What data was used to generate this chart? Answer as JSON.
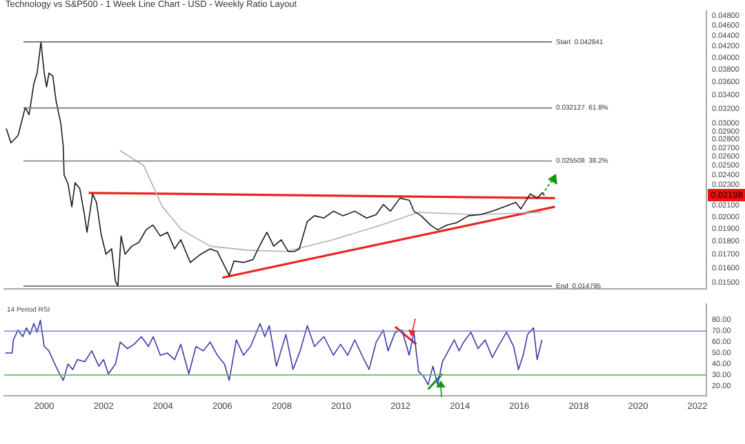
{
  "chart_data": [
    {
      "type": "line",
      "title": "Technology vs S&P500 - 1 Week Line Chart - USD - Weekly Ratio Layout",
      "log": "y",
      "grid": false,
      "legend": false,
      "marker": "none",
      "line_style": "solid",
      "tick_labels": "y",
      "xlim": [
        1998.65,
        2022.3
      ],
      "ylim": [
        0.0146,
        0.049
      ],
      "yticks": [
        {
          "value": 0.015,
          "label": "0.01500"
        },
        {
          "value": 0.016,
          "label": "0.01600"
        },
        {
          "value": 0.017,
          "label": "0.01700"
        },
        {
          "value": 0.018,
          "label": "0.01800"
        },
        {
          "value": 0.019,
          "label": "0.01900"
        },
        {
          "value": 0.02,
          "label": "0.02000"
        },
        {
          "value": 0.021,
          "label": "0.02100"
        },
        {
          "value": 0.023,
          "label": "0.02300"
        },
        {
          "value": 0.024,
          "label": "0.02400"
        },
        {
          "value": 0.025,
          "label": "0.02500"
        },
        {
          "value": 0.026,
          "label": "0.02600"
        },
        {
          "value": 0.027,
          "label": "0.02700"
        },
        {
          "value": 0.028,
          "label": "0.02800"
        },
        {
          "value": 0.029,
          "label": "0.02900"
        },
        {
          "value": 0.03,
          "label": "0.03000"
        },
        {
          "value": 0.032,
          "label": "0.03200"
        },
        {
          "value": 0.034,
          "label": "0.03400"
        },
        {
          "value": 0.036,
          "label": "0.03600"
        },
        {
          "value": 0.038,
          "label": "0.03800"
        },
        {
          "value": 0.04,
          "label": "0.04000"
        },
        {
          "value": 0.042,
          "label": "0.04200"
        },
        {
          "value": 0.044,
          "label": "0.04400"
        },
        {
          "value": 0.046,
          "label": "0.04600"
        },
        {
          "value": 0.048,
          "label": "0.04800"
        }
      ],
      "ref_lines": [
        {
          "axis": "y",
          "value": 0.042841,
          "label": "Start  0.042841",
          "color": "#555555"
        },
        {
          "axis": "y",
          "value": 0.032127,
          "label": "0.032127  61.8%",
          "color": "#777777"
        },
        {
          "axis": "y",
          "value": 0.025508,
          "label": "0.025508  38.2%",
          "color": "#777777"
        },
        {
          "axis": "y",
          "value": 0.014795,
          "label": "End  0.014795",
          "color": "#555555"
        }
      ],
      "annotations": [
        {
          "text": "0.02198",
          "y": 0.02198
        }
      ],
      "series": [
        {
          "color": "#1a1a1a",
          "x": [
            1998.72,
            1998.88,
            1999.12,
            1999.36,
            1999.49,
            1999.65,
            1999.76,
            1999.89,
            2000.0,
            2000.08,
            2000.16,
            2000.29,
            2000.4,
            2000.56,
            2000.64,
            2000.67,
            2000.8,
            2000.93,
            2001.04,
            2001.2,
            2001.36,
            2001.44,
            2001.63,
            2001.76,
            2001.92,
            2002.08,
            2002.27,
            2002.4,
            2002.48,
            2002.59,
            2002.72,
            2002.95,
            2003.19,
            2003.43,
            2003.66,
            2003.91,
            2004.15,
            2004.39,
            2004.6,
            2004.92,
            2005.27,
            2005.59,
            2005.83,
            2006.23,
            2006.39,
            2006.71,
            2007.03,
            2007.27,
            2007.5,
            2007.73,
            2007.98,
            2008.22,
            2008.43,
            2008.59,
            2008.86,
            2009.1,
            2009.42,
            2009.74,
            2010.06,
            2010.46,
            2010.86,
            2011.18,
            2011.42,
            2011.66,
            2011.98,
            2012.3,
            2012.45,
            2012.69,
            2013.01,
            2013.25,
            2013.56,
            2013.89,
            2014.29,
            2014.69,
            2015.09,
            2015.49,
            2015.88,
            2016.05,
            2016.37,
            2016.61,
            2016.76,
            2016.85
          ],
          "values": [
            0.0294,
            0.0276,
            0.0285,
            0.0322,
            0.0312,
            0.0357,
            0.0374,
            0.0428,
            0.0374,
            0.0352,
            0.0374,
            0.0369,
            0.0331,
            0.03,
            0.0272,
            0.024,
            0.0231,
            0.0209,
            0.0232,
            0.0226,
            0.0201,
            0.0187,
            0.0221,
            0.0213,
            0.0185,
            0.017,
            0.0174,
            0.0151,
            0.0148,
            0.0184,
            0.017,
            0.0176,
            0.0179,
            0.0189,
            0.0193,
            0.0184,
            0.0187,
            0.0174,
            0.0181,
            0.0164,
            0.017,
            0.0174,
            0.0172,
            0.0155,
            0.0165,
            0.0164,
            0.0166,
            0.0177,
            0.0187,
            0.0176,
            0.0181,
            0.0172,
            0.0172,
            0.0174,
            0.0196,
            0.0201,
            0.0199,
            0.0205,
            0.0201,
            0.0205,
            0.0199,
            0.0202,
            0.0211,
            0.0205,
            0.0217,
            0.0215,
            0.0205,
            0.0201,
            0.0193,
            0.0189,
            0.0193,
            0.0195,
            0.0201,
            0.0202,
            0.0205,
            0.0209,
            0.0213,
            0.0207,
            0.0221,
            0.0217,
            0.0222,
            0.02198
          ]
        },
        {
          "color": "#b0b0b0",
          "x": [
            2002.55,
            2003.35,
            2003.98,
            2004.63,
            2005.59,
            2006.85,
            2008.15,
            2009.72,
            2011.34,
            2012.6,
            2014.54,
            2016.76
          ],
          "values": [
            0.0267,
            0.025,
            0.0209,
            0.0189,
            0.0176,
            0.0173,
            0.0172,
            0.0181,
            0.0193,
            0.0204,
            0.0202,
            0.0204
          ]
        },
        {
          "color": "#ee2222",
          "x": [
            2001.5,
            2017.2
          ],
          "values": [
            0.0222,
            0.0217
          ]
        },
        {
          "color": "#ee2222",
          "x": [
            2006.0,
            2017.2
          ],
          "values": [
            0.01535,
            0.0209
          ]
        }
      ]
    },
    {
      "type": "line",
      "title": "14 Period RSI",
      "grid": false,
      "legend": false,
      "marker": "none",
      "line_style": "solid",
      "xlim": [
        1998.65,
        2022.3
      ],
      "ylim": [
        11,
        95
      ],
      "xticks": [
        2000,
        2002,
        2004,
        2006,
        2008,
        2010,
        2012,
        2014,
        2016,
        2018,
        2020,
        2022
      ],
      "yticks": [
        {
          "value": 20,
          "label": "20.00"
        },
        {
          "value": 30,
          "label": "30.00"
        },
        {
          "value": 40,
          "label": "40.00"
        },
        {
          "value": 50,
          "label": "50.00"
        },
        {
          "value": 60,
          "label": "60.00"
        },
        {
          "value": 70,
          "label": "70.00"
        },
        {
          "value": 80,
          "label": "80.00"
        }
      ],
      "ref_lines": [
        {
          "axis": "y",
          "value": 70,
          "color": "#8080d0"
        },
        {
          "axis": "y",
          "value": 30,
          "color": "#5cbf5c"
        }
      ],
      "series": [
        {
          "color": "#3a3aa8",
          "x": [
            1998.69,
            1998.92,
            1998.96,
            1999.12,
            1999.28,
            1999.4,
            1999.52,
            1999.65,
            1999.76,
            1999.87,
            2000.0,
            2000.16,
            2000.32,
            2000.48,
            2000.64,
            2000.8,
            2000.96,
            2001.12,
            2001.36,
            2001.6,
            2001.84,
            2002.0,
            2002.16,
            2002.4,
            2002.56,
            2002.8,
            2003.03,
            2003.27,
            2003.51,
            2003.67,
            2003.91,
            2004.15,
            2004.39,
            2004.6,
            2004.87,
            2005.11,
            2005.35,
            2005.59,
            2005.83,
            2006.07,
            2006.23,
            2006.47,
            2006.71,
            2006.95,
            2007.27,
            2007.43,
            2007.58,
            2007.82,
            2008.14,
            2008.38,
            2008.62,
            2008.86,
            2009.1,
            2009.42,
            2009.74,
            2009.98,
            2010.22,
            2010.46,
            2010.7,
            2010.94,
            2011.18,
            2011.42,
            2011.58,
            2011.82,
            2012.05,
            2012.29,
            2012.45,
            2012.61,
            2012.77,
            2012.93,
            2013.09,
            2013.25,
            2013.41,
            2013.65,
            2013.81,
            2013.97,
            2014.13,
            2014.37,
            2014.61,
            2014.85,
            2015.09,
            2015.33,
            2015.57,
            2015.81,
            2015.97,
            2016.13,
            2016.28,
            2016.48,
            2016.6,
            2016.76
          ],
          "values": [
            50,
            50,
            62,
            71,
            65,
            73,
            67,
            77,
            69,
            80,
            56,
            52,
            42,
            33,
            25,
            40,
            35,
            44,
            42,
            52,
            38,
            44,
            31,
            40,
            60,
            54,
            58,
            65,
            56,
            65,
            48,
            50,
            44,
            58,
            31,
            56,
            52,
            60,
            48,
            40,
            25,
            62,
            48,
            56,
            77,
            65,
            75,
            38,
            67,
            35,
            52,
            75,
            56,
            65,
            48,
            58,
            48,
            62,
            48,
            35,
            60,
            71,
            52,
            69,
            71,
            48,
            69,
            33,
            29,
            21,
            38,
            21,
            42,
            54,
            62,
            52,
            60,
            69,
            54,
            62,
            46,
            58,
            69,
            56,
            35,
            48,
            67,
            73,
            44,
            62
          ]
        },
        {
          "color": "#ee2222",
          "x": [
            2011.82,
            2012.53
          ],
          "values": [
            74,
            58
          ]
        },
        {
          "color": "#119911",
          "x": [
            2012.93,
            2013.41
          ],
          "values": [
            17,
            31
          ]
        }
      ]
    }
  ]
}
